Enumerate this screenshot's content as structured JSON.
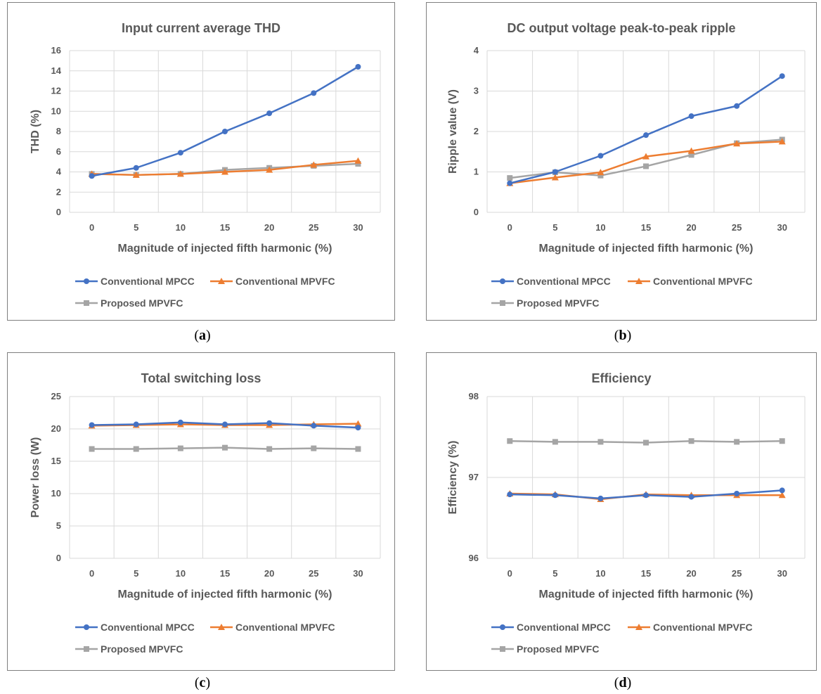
{
  "colors": {
    "series": [
      "#4472C4",
      "#ED7D31",
      "#A5A5A5"
    ],
    "grid": "#d9d9d9",
    "text": "#595959"
  },
  "captions": [
    "a",
    "b",
    "c",
    "d"
  ],
  "chart_data": [
    {
      "type": "line",
      "title": "Input current average THD",
      "xlabel": "Magnitude of injected fifth harmonic (%)",
      "ylabel": "THD (%)",
      "categories": [
        "0",
        "5",
        "10",
        "15",
        "20",
        "25",
        "30"
      ],
      "ylim": [
        0,
        16
      ],
      "yticks": [
        "0",
        "2",
        "4",
        "6",
        "8",
        "10",
        "12",
        "14",
        "16"
      ],
      "grid": true,
      "legend": "bottom",
      "series": [
        {
          "name": "Conventional MPCC",
          "marker": "circle",
          "values": [
            3.6,
            4.4,
            5.9,
            8.0,
            9.8,
            11.8,
            14.4
          ]
        },
        {
          "name": "Conventional MPVFC",
          "marker": "triangle",
          "values": [
            3.8,
            3.7,
            3.8,
            4.0,
            4.2,
            4.7,
            5.1
          ]
        },
        {
          "name": "Proposed MPVFC",
          "marker": "square",
          "values": [
            3.8,
            3.7,
            3.8,
            4.2,
            4.4,
            4.6,
            4.8
          ]
        }
      ]
    },
    {
      "type": "line",
      "title": "DC output voltage peak-to-peak ripple",
      "xlabel": "Magnitude of injected fifth harmonic (%)",
      "ylabel": "Ripple value (V)",
      "categories": [
        "0",
        "5",
        "10",
        "15",
        "20",
        "25",
        "30"
      ],
      "ylim": [
        0,
        4
      ],
      "yticks": [
        "0",
        "1",
        "2",
        "3",
        "4"
      ],
      "grid": true,
      "legend": "bottom",
      "series": [
        {
          "name": "Conventional MPCC",
          "marker": "circle",
          "values": [
            0.72,
            1.0,
            1.4,
            1.91,
            2.38,
            2.63,
            3.37
          ]
        },
        {
          "name": "Conventional MPVFC",
          "marker": "triangle",
          "values": [
            0.72,
            0.86,
            0.99,
            1.38,
            1.52,
            1.7,
            1.75
          ]
        },
        {
          "name": "Proposed MPVFC",
          "marker": "square",
          "values": [
            0.85,
            0.99,
            0.91,
            1.14,
            1.42,
            1.71,
            1.8
          ]
        }
      ]
    },
    {
      "type": "line",
      "title": "Total switching loss",
      "xlabel": "Magnitude of injected fifth harmonic (%)",
      "ylabel": "Power loss (W)",
      "categories": [
        "0",
        "5",
        "10",
        "15",
        "20",
        "25",
        "30"
      ],
      "ylim": [
        0,
        25
      ],
      "yticks": [
        "0",
        "5",
        "10",
        "15",
        "20",
        "25"
      ],
      "grid": true,
      "legend": "bottom",
      "series": [
        {
          "name": "Conventional MPCC",
          "marker": "circle",
          "values": [
            20.6,
            20.7,
            21.0,
            20.7,
            20.9,
            20.5,
            20.2
          ]
        },
        {
          "name": "Conventional MPVFC",
          "marker": "triangle",
          "values": [
            20.5,
            20.6,
            20.7,
            20.6,
            20.6,
            20.7,
            20.8
          ]
        },
        {
          "name": "Proposed MPVFC",
          "marker": "square",
          "values": [
            16.9,
            16.9,
            17.0,
            17.1,
            16.9,
            17.0,
            16.9
          ]
        }
      ]
    },
    {
      "type": "line",
      "title": "Efficiency",
      "xlabel": "Magnitude of injected fifth harmonic (%)",
      "ylabel": "Efficiency (%)",
      "categories": [
        "0",
        "5",
        "10",
        "15",
        "20",
        "25",
        "30"
      ],
      "ylim": [
        96,
        98
      ],
      "yticks": [
        "96",
        "97",
        "98"
      ],
      "grid": true,
      "legend": "bottom",
      "series": [
        {
          "name": "Conventional MPCC",
          "marker": "circle",
          "values": [
            96.79,
            96.78,
            96.74,
            96.78,
            96.76,
            96.8,
            96.84
          ]
        },
        {
          "name": "Conventional MPVFC",
          "marker": "triangle",
          "values": [
            96.8,
            96.79,
            96.73,
            96.79,
            96.78,
            96.78,
            96.78
          ]
        },
        {
          "name": "Proposed MPVFC",
          "marker": "square",
          "values": [
            97.45,
            97.44,
            97.44,
            97.43,
            97.45,
            97.44,
            97.45
          ]
        }
      ]
    }
  ]
}
